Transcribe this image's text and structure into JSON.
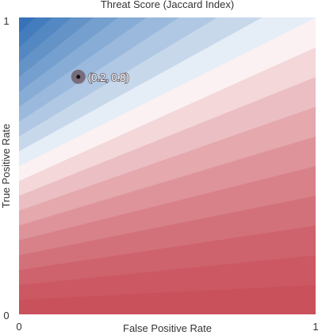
{
  "chart_data": {
    "type": "heatmap",
    "title": "Threat Score (Jaccard Index)",
    "xlabel": "False Positive Rate",
    "ylabel": "True Positive Rate",
    "xlim": [
      0,
      1
    ],
    "ylim": [
      0,
      1
    ],
    "x_ticks": [
      "0",
      "1"
    ],
    "y_ticks": [
      "0",
      "1"
    ],
    "grid": false,
    "legend": "none",
    "contour_levels": [
      0,
      0.05,
      0.1,
      0.15,
      0.2,
      0.25,
      0.3,
      0.35,
      0.4,
      0.45,
      0.5,
      0.55,
      0.6,
      0.65,
      0.7,
      0.75,
      0.8,
      0.85,
      0.9,
      0.95,
      1
    ],
    "colors": {
      "low": "#c9505b",
      "mid": "#ffffff",
      "high": "#2e6db5"
    },
    "marked_point": {
      "x": 0.2,
      "y": 0.8,
      "label": "(0.2, 0.8)"
    }
  }
}
